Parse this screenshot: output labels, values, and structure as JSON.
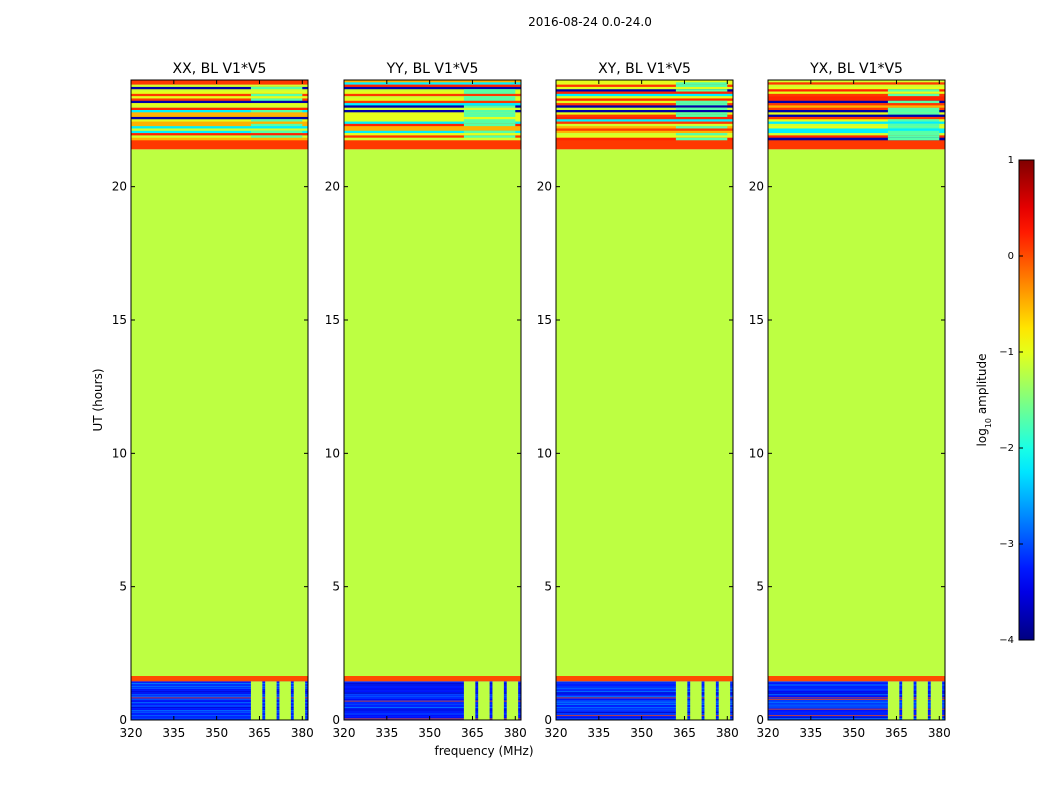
{
  "chart_data": {
    "type": "heatmap",
    "suptitle": "2016-08-24 0.0-24.0",
    "xlabel": "frequency (MHz)",
    "ylabel": "UT (hours)",
    "xlim": [
      320,
      382
    ],
    "ylim": [
      0,
      24
    ],
    "xticks": [
      320,
      335,
      350,
      365,
      380
    ],
    "yticks": [
      0,
      5,
      10,
      15,
      20
    ],
    "colorbar": {
      "label_prefix": "log",
      "label_sub": "10",
      "label_suffix": " amplitude",
      "range": [
        -4,
        1
      ],
      "ticks": [
        "1",
        "0",
        "−1",
        "−2",
        "−3",
        "−4"
      ]
    },
    "panels": [
      {
        "title": "XX, BL V1*V5",
        "pol": "XX"
      },
      {
        "title": "YY, BL V1*V5",
        "pol": "YY"
      },
      {
        "title": "XY, BL V1*V5",
        "pol": "XY"
      },
      {
        "title": "YX, BL V1*V5",
        "pol": "YX"
      }
    ],
    "bands": [
      {
        "from": 0.0,
        "to": 1.45,
        "kind": "noise",
        "value": -3.2
      },
      {
        "from": 1.45,
        "to": 1.65,
        "kind": "solid",
        "value": 0.0
      },
      {
        "from": 1.65,
        "to": 21.4,
        "kind": "solid",
        "value": -1.2
      },
      {
        "from": 21.4,
        "to": 21.75,
        "kind": "solid",
        "value": 0.1
      },
      {
        "from": 21.75,
        "to": 24.0,
        "kind": "striped",
        "value": -1.0
      }
    ],
    "rfi_channels_mhz": [
      [
        362,
        366
      ],
      [
        367,
        371
      ],
      [
        372,
        376
      ],
      [
        377,
        381
      ]
    ],
    "rfi_value": -1.2
  }
}
